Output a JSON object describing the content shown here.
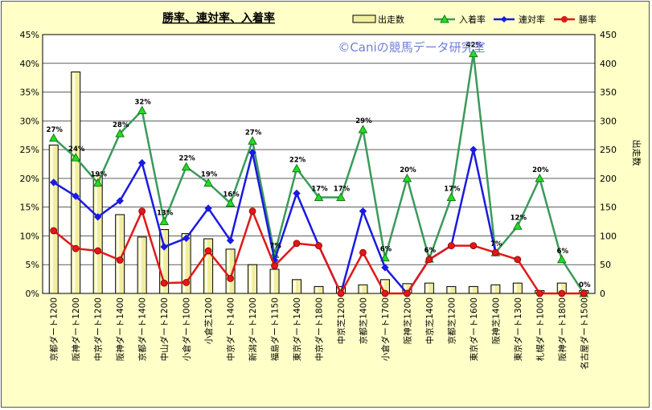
{
  "chart_data": {
    "type": "bar+line",
    "title": "勝率、連対率、入着率",
    "watermark": "©Caniの競馬データ研究室",
    "y2label": "出走数",
    "ylim": [
      0,
      45
    ],
    "y2lim": [
      0,
      450
    ],
    "yticks": [
      "0%",
      "5%",
      "10%",
      "15%",
      "20%",
      "25%",
      "30%",
      "35%",
      "40%",
      "45%"
    ],
    "y2ticks": [
      "0",
      "50",
      "100",
      "150",
      "200",
      "250",
      "300",
      "350",
      "400",
      "450"
    ],
    "categories": [
      "京都ダート1200",
      "阪神ダート1200",
      "中京ダート1200",
      "阪神ダート1400",
      "京都ダート1400",
      "中山ダート1200",
      "小倉ダート1000",
      "小倉芝1200",
      "中京ダート1400",
      "新潟ダート1200",
      "福島ダート1150",
      "東京ダート1400",
      "中京ダート1800",
      "中京芝1200",
      "京都芝1400",
      "小倉ダート1700",
      "阪神芝1200",
      "中京芝1400",
      "京都芝1200",
      "東京ダート1600",
      "阪神芝1400",
      "東京ダート1300",
      "札幌ダート1000",
      "阪神ダート1800",
      "名古屋ダート1500"
    ],
    "legend_position": "top",
    "grid": true,
    "series": [
      {
        "name": "出走数",
        "kind": "bar",
        "axis": "right",
        "color": "#f2eea0",
        "values": [
          258,
          385,
          205,
          137,
          98,
          111,
          104,
          95,
          77,
          50,
          42,
          24,
          12,
          12,
          15,
          24,
          17,
          18,
          12,
          12,
          15,
          18,
          5,
          18,
          5
        ]
      },
      {
        "name": "入着率",
        "kind": "line",
        "axis": "left",
        "color": "#3a9a5a",
        "marker": "triangle",
        "values": [
          27,
          23.6,
          19.2,
          27.8,
          31.8,
          12.5,
          22.0,
          19.2,
          15.7,
          26.5,
          6.8,
          21.7,
          16.7,
          16.7,
          28.5,
          6.2,
          20.0,
          6.0,
          16.7,
          41.7,
          7.1,
          11.7,
          20.0,
          5.9,
          0
        ]
      },
      {
        "name": "連対率",
        "kind": "line",
        "axis": "left",
        "color": "#1a1ae0",
        "marker": "diamond",
        "values": [
          19.3,
          16.9,
          13.3,
          16.1,
          22.7,
          8.1,
          9.6,
          14.8,
          9.2,
          24.5,
          5.8,
          17.4,
          8.3,
          0,
          14.3,
          4.5,
          0,
          5.9,
          8.3,
          25.0,
          7.1,
          null,
          null,
          null,
          null
        ]
      },
      {
        "name": "勝率",
        "kind": "line",
        "axis": "left",
        "color": "#e01818",
        "marker": "circle",
        "values": [
          10.9,
          7.8,
          7.4,
          5.8,
          14.3,
          1.8,
          1.9,
          7.4,
          2.6,
          14.3,
          4.8,
          8.7,
          8.3,
          0,
          7.1,
          0,
          0,
          5.9,
          8.3,
          8.3,
          7.1,
          5.9,
          0,
          0,
          0
        ]
      }
    ],
    "data_labels": [
      {
        "index": 0,
        "text": "27%"
      },
      {
        "index": 1,
        "text": "24%"
      },
      {
        "index": 2,
        "text": "19%"
      },
      {
        "index": 3,
        "text": "28%"
      },
      {
        "index": 4,
        "text": "32%"
      },
      {
        "index": 5,
        "text": "13%"
      },
      {
        "index": 6,
        "text": "22%"
      },
      {
        "index": 7,
        "text": "19%"
      },
      {
        "index": 8,
        "text": "16%"
      },
      {
        "index": 9,
        "text": "27%"
      },
      {
        "index": 10,
        "text": "7%"
      },
      {
        "index": 11,
        "text": "22%"
      },
      {
        "index": 12,
        "text": "17%"
      },
      {
        "index": 13,
        "text": "17%"
      },
      {
        "index": 14,
        "text": "29%"
      },
      {
        "index": 15,
        "text": "6%"
      },
      {
        "index": 16,
        "text": "20%"
      },
      {
        "index": 17,
        "text": "6%"
      },
      {
        "index": 18,
        "text": "17%"
      },
      {
        "index": 19,
        "text": "42%"
      },
      {
        "index": 20,
        "text": "7%"
      },
      {
        "index": 21,
        "text": "12%"
      },
      {
        "index": 22,
        "text": "20%"
      },
      {
        "index": 23,
        "text": "6%"
      },
      {
        "index": 24,
        "text": "0%"
      }
    ]
  }
}
